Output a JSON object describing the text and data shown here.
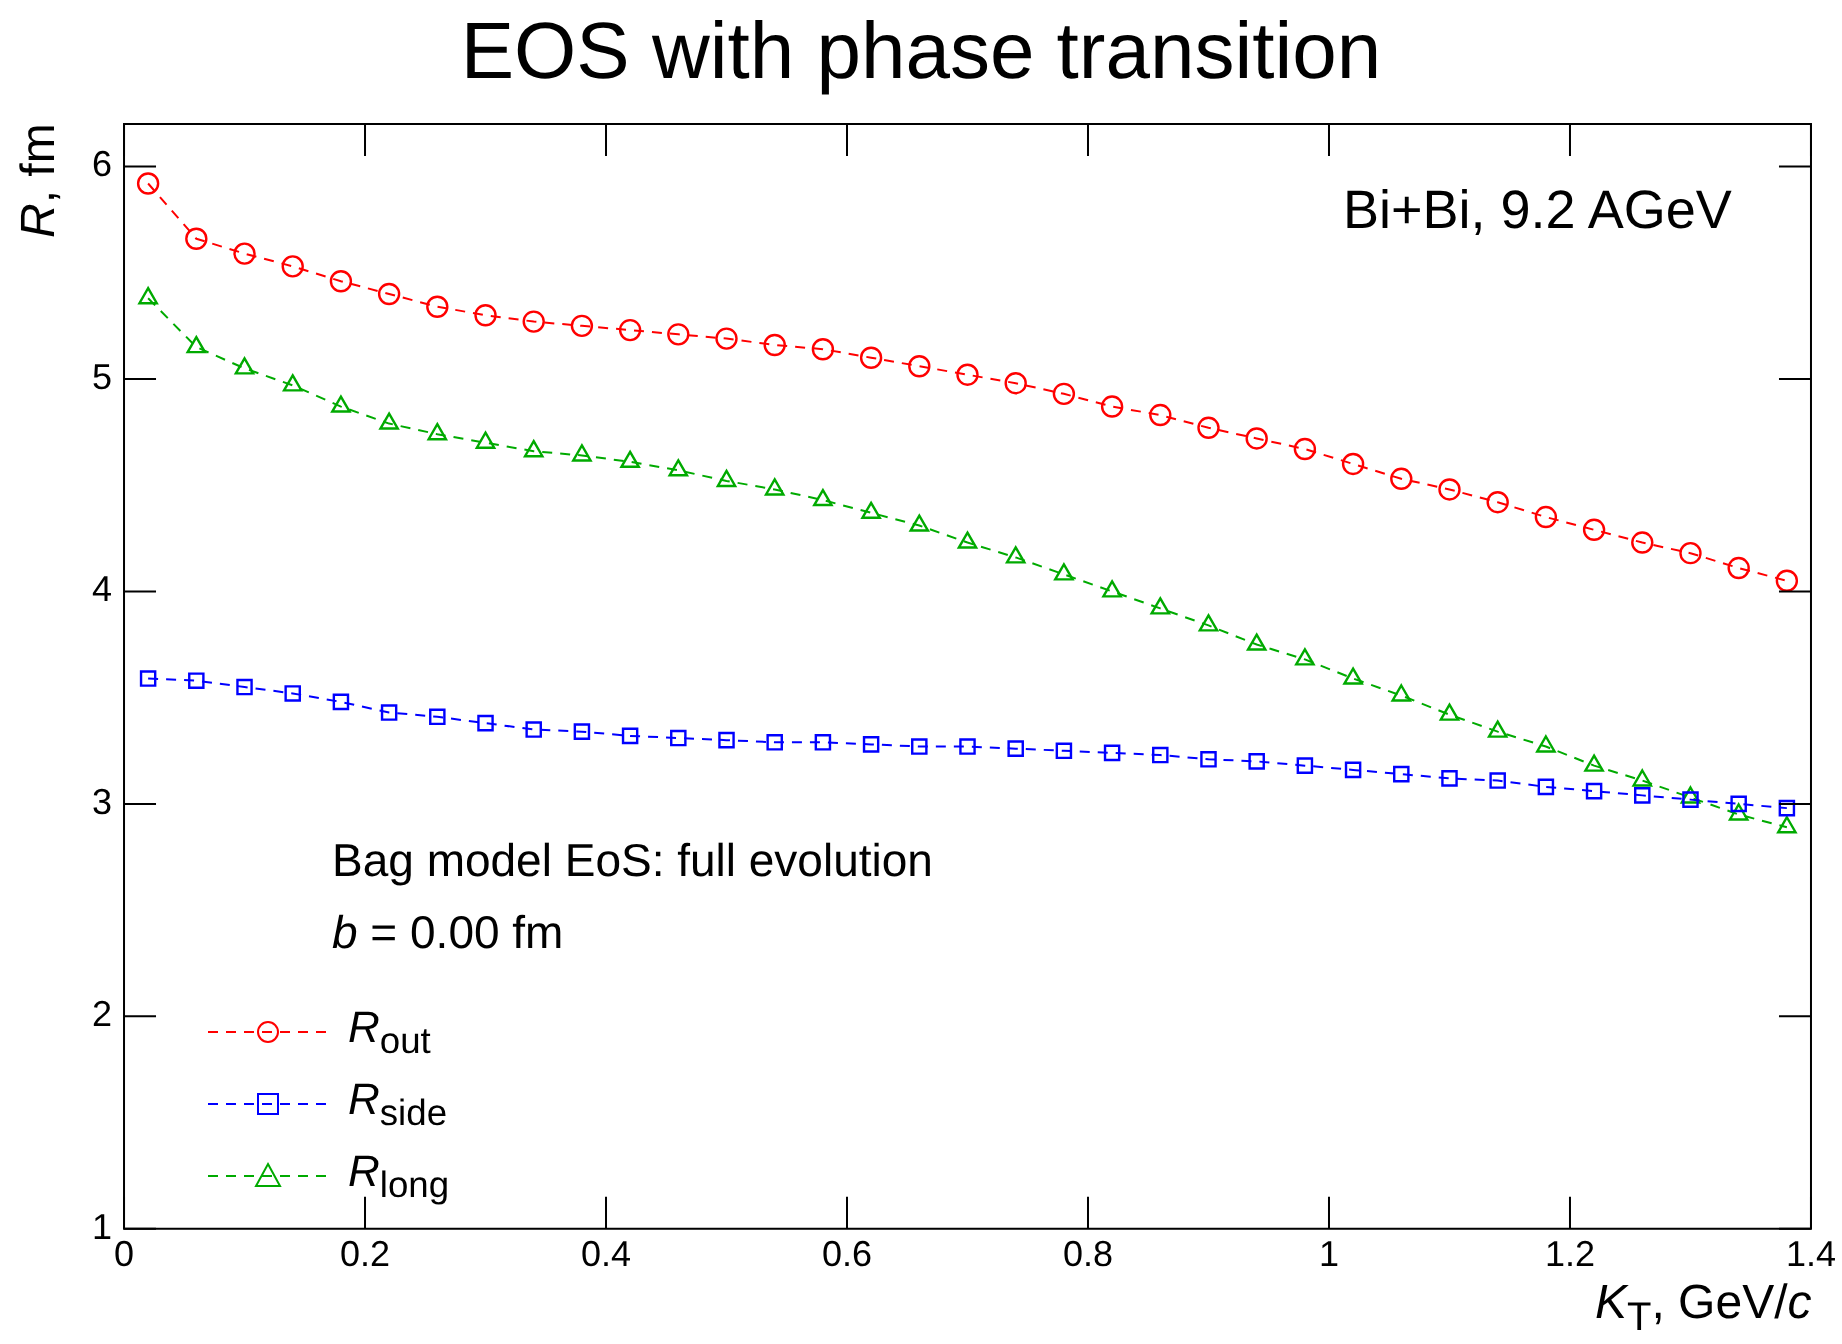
{
  "chart_data": {
    "type": "line",
    "title": "EOS with phase transition",
    "xlabel": "K$_{T}$, GeV/c",
    "ylabel": "R, fm",
    "x": [
      0.02,
      0.06,
      0.1,
      0.14,
      0.18,
      0.22,
      0.26,
      0.3,
      0.34,
      0.38,
      0.42,
      0.46,
      0.5,
      0.54,
      0.58,
      0.62,
      0.66,
      0.7,
      0.74,
      0.78,
      0.82,
      0.86,
      0.9,
      0.94,
      0.98,
      1.02,
      1.06,
      1.1,
      1.14,
      1.18,
      1.22,
      1.26,
      1.3,
      1.34,
      1.38
    ],
    "series": [
      {
        "name": "R$_{out}$",
        "color": "#ff0000",
        "marker": "circle",
        "values": [
          5.92,
          5.66,
          5.59,
          5.53,
          5.46,
          5.4,
          5.34,
          5.3,
          5.27,
          5.25,
          5.23,
          5.21,
          5.19,
          5.16,
          5.14,
          5.1,
          5.06,
          5.02,
          4.98,
          4.93,
          4.87,
          4.83,
          4.77,
          4.72,
          4.67,
          4.6,
          4.53,
          4.48,
          4.42,
          4.35,
          4.29,
          4.23,
          4.18,
          4.11,
          4.05
        ]
      },
      {
        "name": "R$_{side}$",
        "color": "#0000ff",
        "marker": "square",
        "values": [
          3.59,
          3.58,
          3.55,
          3.52,
          3.48,
          3.43,
          3.41,
          3.38,
          3.35,
          3.34,
          3.32,
          3.31,
          3.3,
          3.29,
          3.29,
          3.28,
          3.27,
          3.27,
          3.26,
          3.25,
          3.24,
          3.23,
          3.21,
          3.2,
          3.18,
          3.16,
          3.14,
          3.12,
          3.11,
          3.08,
          3.06,
          3.04,
          3.02,
          3.0,
          2.98
        ]
      },
      {
        "name": "R$_{long}$",
        "color": "#00aa00",
        "marker": "triangle",
        "values": [
          5.38,
          5.15,
          5.05,
          4.97,
          4.87,
          4.79,
          4.74,
          4.7,
          4.66,
          4.64,
          4.61,
          4.57,
          4.52,
          4.48,
          4.43,
          4.37,
          4.31,
          4.23,
          4.16,
          4.08,
          4.0,
          3.92,
          3.84,
          3.75,
          3.68,
          3.59,
          3.51,
          3.42,
          3.34,
          3.27,
          3.18,
          3.11,
          3.03,
          2.95,
          2.89
        ]
      }
    ],
    "xlim": [
      0,
      1.4
    ],
    "xticks": [
      0,
      0.2,
      0.4,
      0.6,
      0.8,
      1,
      1.2,
      1.4
    ],
    "ylim": [
      1,
      6.2
    ],
    "yticks": [
      1,
      2,
      3,
      4,
      5,
      6
    ],
    "grid": false,
    "legend": "bottom left",
    "line_style": "dashed",
    "annotations": [
      "Bi+Bi, 9.2 AGeV",
      "Bag model EoS: full evolution",
      "b = 0.00 fm"
    ]
  }
}
